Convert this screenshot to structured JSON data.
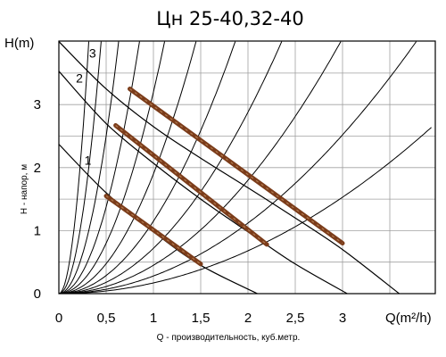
{
  "chart_data": {
    "type": "line",
    "title": "Цн 25-40,32-40",
    "xlabel_unit": "Q(m²/h)",
    "ylabel_unit": "H(m)",
    "xlabel": "Q - производительность, куб.метр.",
    "ylabel": "H - напор, м",
    "xlim": [
      0,
      3.95
    ],
    "ylim": [
      0,
      4.0
    ],
    "x_ticks": [
      0,
      0.5,
      1,
      1.5,
      2,
      2.5,
      3
    ],
    "x_tick_labels": [
      "0",
      "0,5",
      "1",
      "1,5",
      "2",
      "2,5",
      "3"
    ],
    "y_ticks": [
      0,
      1,
      2,
      3
    ],
    "y_tick_labels": [
      "0",
      "1",
      "2",
      "3"
    ],
    "grid": true,
    "pump_curves": [
      {
        "name": "1",
        "x": [
          0,
          0.5,
          1,
          1.5,
          2.1
        ],
        "y": [
          2.37,
          1.6,
          0.98,
          0.45,
          0
        ]
      },
      {
        "name": "2",
        "x": [
          0,
          0.5,
          1,
          1.5,
          2,
          2.5,
          3.05
        ],
        "y": [
          3.53,
          2.7,
          2.07,
          1.5,
          0.98,
          0.47,
          0
        ]
      },
      {
        "name": "3",
        "x": [
          0,
          0.5,
          1,
          1.5,
          2,
          2.5,
          3,
          3.6
        ],
        "y": [
          4.0,
          3.25,
          2.65,
          2.15,
          1.68,
          1.2,
          0.7,
          0
        ]
      }
    ],
    "working_ranges": [
      {
        "name": "1",
        "x": [
          0.5,
          1.5
        ],
        "y": [
          1.55,
          0.47
        ]
      },
      {
        "name": "2",
        "x": [
          0.6,
          2.2
        ],
        "y": [
          2.67,
          0.78
        ]
      },
      {
        "name": "3",
        "x": [
          0.75,
          3.0
        ],
        "y": [
          3.25,
          0.8
        ]
      }
    ],
    "system_curves_k": [
      40,
      20,
      10,
      5.5,
      3.2,
      1.9,
      1.15,
      0.72,
      0.45,
      0.28,
      0.17
    ],
    "colors": {
      "working_range": "#7b3c1a",
      "line": "#000000",
      "grid": "#a0a0a0"
    }
  }
}
